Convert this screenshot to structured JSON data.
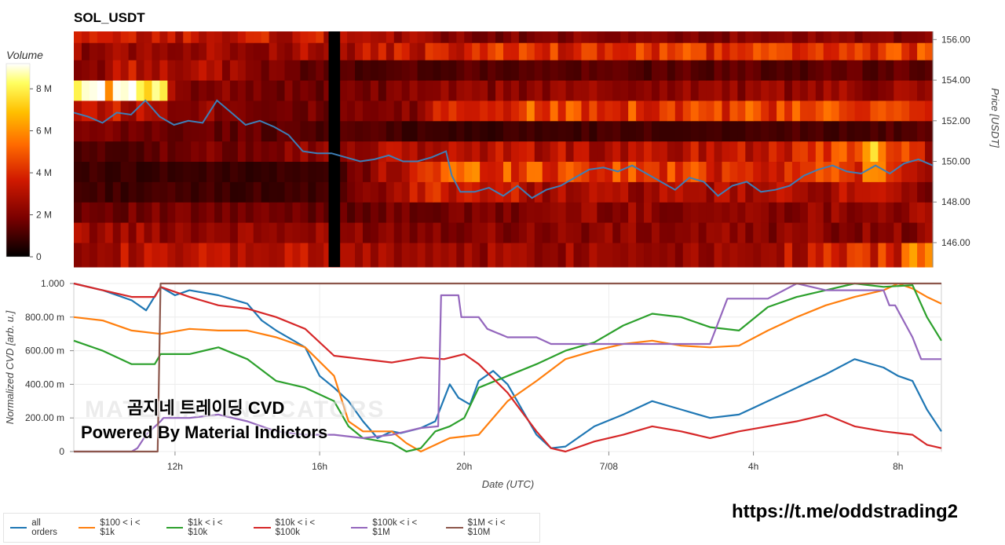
{
  "title": "SOL_USDT",
  "colorbar": {
    "label": "Volume",
    "ticks": [
      {
        "v": 0,
        "label": "0"
      },
      {
        "v": 2,
        "label": "2 M"
      },
      {
        "v": 4,
        "label": "4 M"
      },
      {
        "v": 6,
        "label": "6 M"
      },
      {
        "v": 8,
        "label": "8 M"
      }
    ],
    "max": 9.2,
    "colors": [
      "#000000",
      "#7a0000",
      "#d11a00",
      "#ff6a00",
      "#ffc000",
      "#ffff60",
      "#ffffff"
    ]
  },
  "chart_data": [
    {
      "type": "heatmap",
      "title": "SOL_USDT",
      "ylabel": "Price [USDT]",
      "ylim": [
        144.8,
        156.4
      ],
      "ytick_values": [
        146,
        148,
        150,
        152,
        154,
        156
      ],
      "ytick_labels": [
        "146.00",
        "148.00",
        "150.00",
        "152.00",
        "154.00",
        "156.00"
      ],
      "x_range_hours": [
        0,
        30
      ],
      "bands": [
        {
          "price": 145.5,
          "levels": [
            [
              0,
              3.0
            ],
            [
              8.5,
              3.0
            ],
            [
              11,
              2.6
            ],
            [
              22.5,
              2.6
            ],
            [
              28.8,
              4.0
            ],
            [
              29.7,
              6.5
            ]
          ]
        },
        {
          "price": 146.5,
          "levels": [
            [
              0,
              2.6
            ],
            [
              11,
              2.2
            ],
            [
              30,
              2.2
            ]
          ]
        },
        {
          "price": 147.5,
          "levels": [
            [
              0,
              1.8
            ],
            [
              9,
              1.6
            ],
            [
              15,
              1.8
            ],
            [
              17,
              2.4
            ],
            [
              22,
              2.2
            ],
            [
              30,
              2.5
            ]
          ]
        },
        {
          "price": 148.5,
          "levels": [
            [
              0,
              1.0
            ],
            [
              9,
              0.9
            ],
            [
              13,
              4.0
            ],
            [
              16,
              3.0
            ],
            [
              19,
              2.6
            ],
            [
              25,
              2.8
            ],
            [
              28,
              3.0
            ],
            [
              30,
              1.5
            ]
          ]
        },
        {
          "price": 149.5,
          "levels": [
            [
              0,
              0.9
            ],
            [
              9,
              0.8
            ],
            [
              13,
              5.0
            ],
            [
              19,
              4.5
            ],
            [
              25,
              4.0
            ],
            [
              28,
              5.0
            ],
            [
              30,
              2.0
            ]
          ]
        },
        {
          "price": 150.5,
          "levels": [
            [
              0,
              1.0
            ],
            [
              9,
              2.5
            ],
            [
              13,
              3.0
            ],
            [
              15.5,
              3.3
            ],
            [
              19,
              2.8
            ],
            [
              25,
              3.8
            ],
            [
              28,
              6.0
            ],
            [
              30,
              3.0
            ]
          ]
        },
        {
          "price": 151.5,
          "levels": [
            [
              0,
              1.8
            ],
            [
              9,
              1.3
            ],
            [
              13,
              0.8
            ],
            [
              19,
              1.0
            ],
            [
              30,
              1.2
            ]
          ]
        },
        {
          "price": 152.5,
          "levels": [
            [
              0,
              3.8
            ],
            [
              3.5,
              2.6
            ],
            [
              9,
              1.6
            ],
            [
              12,
              2.0
            ],
            [
              13,
              4.0
            ],
            [
              18.8,
              5.0
            ],
            [
              19,
              4.5
            ],
            [
              30,
              4.2
            ]
          ]
        },
        {
          "price": 153.5,
          "levels": [
            [
              0,
              9.0
            ],
            [
              3,
              7.5
            ],
            [
              3.5,
              2.3
            ],
            [
              9,
              1.6
            ],
            [
              12,
              2.0
            ],
            [
              17,
              2.3
            ],
            [
              30,
              2.4
            ]
          ]
        },
        {
          "price": 154.5,
          "levels": [
            [
              0,
              1.8
            ],
            [
              2.5,
              3.5
            ],
            [
              9,
              1.2
            ],
            [
              30,
              1.4
            ]
          ]
        },
        {
          "price": 155.5,
          "levels": [
            [
              0,
              2.4
            ],
            [
              9,
              2.8
            ],
            [
              15,
              4.0
            ],
            [
              30,
              4.3
            ]
          ]
        },
        {
          "price": 156.2,
          "levels": [
            [
              0,
              3.2
            ],
            [
              9,
              3.4
            ],
            [
              13.5,
              2.0
            ],
            [
              30,
              2.0
            ]
          ]
        }
      ],
      "gap": {
        "from_hours": 8.9,
        "to_hours": 9.3
      },
      "series": [
        {
          "name": "price",
          "color": "#3d7fb8",
          "x": [
            0,
            0.5,
            1,
            1.5,
            2,
            2.5,
            3,
            3.5,
            4,
            4.5,
            5,
            5.5,
            6,
            6.5,
            7,
            7.5,
            8,
            8.5,
            9,
            9.5,
            10,
            10.5,
            11,
            11.5,
            12,
            12.5,
            13,
            13.2,
            13.5,
            14,
            14.5,
            15,
            15.5,
            16,
            16.5,
            17,
            17.5,
            18,
            18.5,
            19,
            19.5,
            20,
            20.5,
            21,
            21.5,
            22,
            22.5,
            23,
            23.5,
            24,
            24.5,
            25,
            25.5,
            26,
            26.5,
            27,
            27.5,
            28,
            28.5,
            29,
            29.5,
            30
          ],
          "y": [
            152.4,
            152.2,
            151.9,
            152.4,
            152.3,
            153.0,
            152.2,
            151.8,
            152.0,
            151.9,
            153.0,
            152.4,
            151.8,
            152.0,
            151.7,
            151.3,
            150.5,
            150.4,
            150.4,
            150.2,
            150.0,
            150.1,
            150.3,
            150.0,
            150.0,
            150.2,
            150.5,
            149.3,
            148.5,
            148.5,
            148.7,
            148.3,
            148.8,
            148.2,
            148.6,
            148.8,
            149.2,
            149.6,
            149.7,
            149.5,
            149.8,
            149.4,
            149.0,
            148.6,
            149.2,
            149.0,
            148.3,
            148.8,
            149.0,
            148.5,
            148.6,
            148.8,
            149.3,
            149.6,
            149.8,
            149.5,
            149.4,
            149.8,
            149.4,
            149.9,
            150.1,
            149.8
          ]
        }
      ]
    },
    {
      "type": "line",
      "xlabel": "Date (UTC)",
      "ylabel": "Normalized CVD [arb. u.]",
      "ylim": [
        0,
        1
      ],
      "ytick_values": [
        0,
        0.2,
        0.4,
        0.6,
        0.8,
        1.0
      ],
      "ytick_labels": [
        "0",
        "200.00 m",
        "400.00 m",
        "600.00 m",
        "800.00 m",
        "1.000"
      ],
      "xlim_hours": [
        0,
        30
      ],
      "xtick_values": [
        3.5,
        8.5,
        13.5,
        18.5,
        23.5,
        28.5
      ],
      "xtick_labels": [
        "12h",
        "16h",
        "20h",
        "7/08",
        "4h",
        "8h"
      ],
      "series": [
        {
          "name": "all orders",
          "color": "#1f77b4",
          "x": [
            0,
            1,
            2,
            2.5,
            3,
            3.5,
            4,
            5,
            6,
            6.5,
            7,
            8,
            8.5,
            9,
            9.5,
            10,
            10.5,
            11,
            11.3,
            12,
            12.5,
            13,
            13.3,
            13.7,
            14,
            14.5,
            15,
            15.5,
            16,
            16.5,
            17,
            18,
            19,
            20,
            21,
            22,
            23,
            23.5,
            24,
            25,
            26,
            27,
            28,
            28.5,
            29,
            29.5,
            30
          ],
          "y": [
            1.0,
            0.96,
            0.9,
            0.84,
            0.98,
            0.93,
            0.96,
            0.93,
            0.88,
            0.78,
            0.72,
            0.62,
            0.45,
            0.38,
            0.3,
            0.18,
            0.08,
            0.12,
            0.11,
            0.14,
            0.18,
            0.4,
            0.32,
            0.28,
            0.42,
            0.48,
            0.4,
            0.25,
            0.1,
            0.02,
            0.03,
            0.15,
            0.22,
            0.3,
            0.25,
            0.2,
            0.22,
            0.26,
            0.3,
            0.38,
            0.46,
            0.55,
            0.5,
            0.45,
            0.42,
            0.25,
            0.12
          ]
        },
        {
          "name": "$100 < i < $1k",
          "color": "#ff7f0e",
          "x": [
            0,
            1,
            2,
            3,
            4,
            5,
            6,
            7,
            8,
            9,
            9.5,
            10,
            11,
            11.5,
            12,
            13,
            14,
            15,
            16,
            17,
            18,
            19,
            20,
            21,
            22,
            23,
            24,
            25,
            26,
            27,
            28,
            28.5,
            29,
            29.5,
            30
          ],
          "y": [
            0.8,
            0.78,
            0.72,
            0.7,
            0.73,
            0.72,
            0.72,
            0.68,
            0.62,
            0.45,
            0.18,
            0.12,
            0.12,
            0.05,
            0.0,
            0.08,
            0.1,
            0.3,
            0.42,
            0.55,
            0.6,
            0.64,
            0.66,
            0.63,
            0.62,
            0.63,
            0.72,
            0.8,
            0.87,
            0.92,
            0.96,
            1.0,
            0.97,
            0.92,
            0.88
          ]
        },
        {
          "name": "$1k < i < $10k",
          "color": "#2ca02c",
          "x": [
            0,
            1,
            2,
            2.8,
            3,
            4,
            5,
            6,
            7,
            8,
            9,
            9.5,
            10,
            11,
            11.5,
            12,
            12.5,
            13,
            13.5,
            14,
            15,
            16,
            17,
            18,
            19,
            20,
            21,
            22,
            23,
            24,
            25,
            26,
            27,
            28,
            29,
            29.5,
            30
          ],
          "y": [
            0.66,
            0.6,
            0.52,
            0.52,
            0.58,
            0.58,
            0.62,
            0.55,
            0.42,
            0.38,
            0.3,
            0.15,
            0.08,
            0.05,
            0.0,
            0.02,
            0.12,
            0.15,
            0.2,
            0.38,
            0.45,
            0.52,
            0.6,
            0.65,
            0.75,
            0.82,
            0.8,
            0.74,
            0.72,
            0.86,
            0.92,
            0.96,
            1.0,
            0.98,
            0.99,
            0.8,
            0.66
          ]
        },
        {
          "name": "$10k < i < $100k",
          "color": "#d62728",
          "x": [
            0,
            1,
            2,
            2.8,
            3,
            4,
            5,
            6,
            7,
            8,
            9,
            10,
            11,
            12,
            12.8,
            13.5,
            14,
            15,
            16,
            16.5,
            17,
            18,
            19,
            20,
            21,
            22,
            23,
            24,
            25,
            26,
            27,
            28,
            29,
            29.5,
            30
          ],
          "y": [
            1.0,
            0.96,
            0.92,
            0.92,
            0.98,
            0.92,
            0.87,
            0.85,
            0.8,
            0.73,
            0.57,
            0.55,
            0.53,
            0.56,
            0.55,
            0.58,
            0.52,
            0.35,
            0.12,
            0.02,
            0.0,
            0.06,
            0.1,
            0.15,
            0.12,
            0.08,
            0.12,
            0.15,
            0.18,
            0.22,
            0.15,
            0.12,
            0.1,
            0.04,
            0.02
          ]
        },
        {
          "name": "$100k < i < $1M",
          "color": "#9467bd",
          "x": [
            0,
            1,
            2,
            2.2,
            2.5,
            3.0,
            3.1,
            4,
            5,
            6,
            7,
            8,
            9,
            10,
            11,
            12,
            12.6,
            12.7,
            13.3,
            13.4,
            14,
            14.3,
            15,
            16,
            16.5,
            17,
            18,
            19,
            20,
            21,
            22,
            22.6,
            23,
            24,
            25,
            26,
            27,
            28,
            28.2,
            28.4,
            29,
            29.3,
            30
          ],
          "y": [
            0.0,
            0.0,
            0.0,
            0.02,
            0.1,
            0.18,
            0.2,
            0.2,
            0.22,
            0.18,
            0.12,
            0.1,
            0.1,
            0.08,
            0.1,
            0.14,
            0.15,
            0.93,
            0.93,
            0.8,
            0.8,
            0.73,
            0.68,
            0.68,
            0.64,
            0.64,
            0.64,
            0.64,
            0.64,
            0.64,
            0.64,
            0.91,
            0.91,
            0.91,
            1.0,
            0.96,
            0.96,
            0.96,
            0.87,
            0.87,
            0.68,
            0.55,
            0.55
          ]
        },
        {
          "name": "$1M < i < $10M",
          "color": "#8c564b",
          "x": [
            0,
            2.9,
            3.0,
            30
          ],
          "y": [
            0.0,
            0.0,
            1.0,
            1.0
          ]
        }
      ]
    }
  ],
  "overlay": {
    "line1": "곰지네 트레이딩 CVD",
    "line2": "Powered By Material Indictors",
    "watermark": "MATERIAL INDICATORS"
  },
  "url": "https://t.me/oddstrading2"
}
